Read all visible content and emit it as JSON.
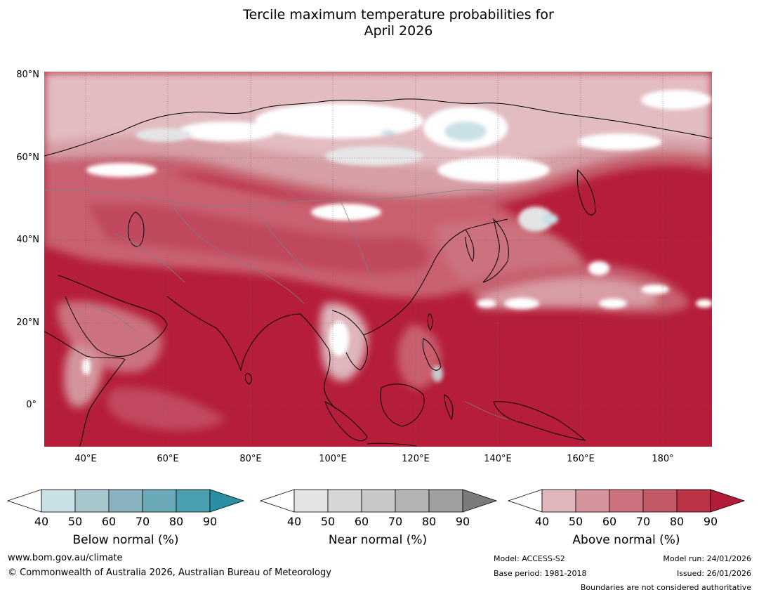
{
  "title": {
    "line1": "Tercile maximum temperature probabilities for",
    "line2": "April 2026"
  },
  "axes": {
    "latitudes": [
      "80°N",
      "60°N",
      "40°N",
      "20°N",
      "0°"
    ],
    "longitudes": [
      "40°E",
      "60°E",
      "80°E",
      "100°E",
      "120°E",
      "140°E",
      "160°E",
      "180°"
    ],
    "lat_range": [
      -10,
      80
    ],
    "lon_range": [
      30,
      192
    ]
  },
  "legends": {
    "below": {
      "label": "Below normal (%)",
      "ticks": [
        "40",
        "50",
        "60",
        "70",
        "80",
        "90"
      ],
      "colors": [
        "#ffffff",
        "#c8e0e6",
        "#a6c7cc",
        "#88b3be",
        "#6aaab8",
        "#4aa0b1",
        "#2a8fa3"
      ]
    },
    "near": {
      "label": "Near normal (%)",
      "ticks": [
        "40",
        "50",
        "60",
        "70",
        "80",
        "90"
      ],
      "colors": [
        "#ffffff",
        "#e4e4e4",
        "#d6d6d6",
        "#c8c8c8",
        "#b3b3b3",
        "#a0a0a0",
        "#7b7b7b"
      ]
    },
    "above": {
      "label": "Above normal (%)",
      "ticks": [
        "40",
        "50",
        "60",
        "70",
        "80",
        "90"
      ],
      "colors": [
        "#ffffff",
        "#deb6bb",
        "#d4949c",
        "#cc727e",
        "#c45a68",
        "#ba3347",
        "#b31b38"
      ]
    }
  },
  "footer": {
    "website": "www.bom.gov.au/climate",
    "copyright": "© Commonwealth of Australia 2026, Australian Bureau of Meteorology",
    "model": "Model: ACCESS-S2",
    "base_period": "Base period: 1981-2018",
    "model_run": "Model run: 24/01/2026",
    "issued": "Issued: 26/01/2026",
    "disclaimer": "Boundaries are not considered authoritative"
  }
}
